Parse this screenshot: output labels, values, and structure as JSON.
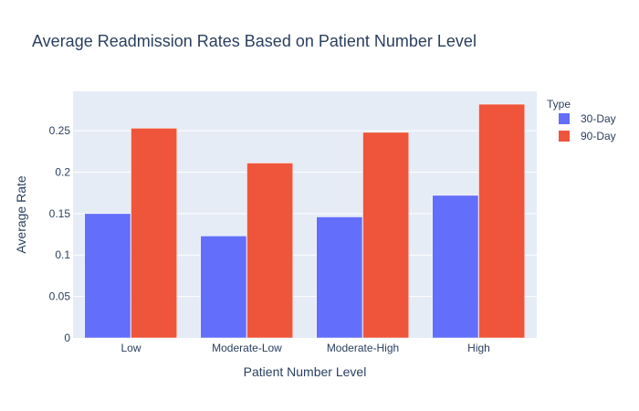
{
  "chart_data": {
    "type": "bar",
    "title": "Average Readmission Rates Based on Patient Number Level",
    "xlabel": "Patient Number Level",
    "ylabel": "Average Rate",
    "categories": [
      "Low",
      "Moderate-Low",
      "Moderate-High",
      "High"
    ],
    "series": [
      {
        "name": "30-Day",
        "values": [
          0.15,
          0.123,
          0.146,
          0.172
        ],
        "color": "#636efa"
      },
      {
        "name": "90-Day",
        "values": [
          0.253,
          0.211,
          0.248,
          0.282
        ],
        "color": "#ef553b"
      }
    ],
    "ylim": [
      0,
      0.2975
    ],
    "yticks": [
      0,
      0.05,
      0.1,
      0.15,
      0.2,
      0.25
    ],
    "ytick_labels": [
      "0",
      "0.05",
      "0.1",
      "0.15",
      "0.2",
      "0.25"
    ],
    "grid": true,
    "legend": {
      "title": "Type",
      "position": "top-right"
    },
    "plot_bg": "#e5ecf6"
  }
}
